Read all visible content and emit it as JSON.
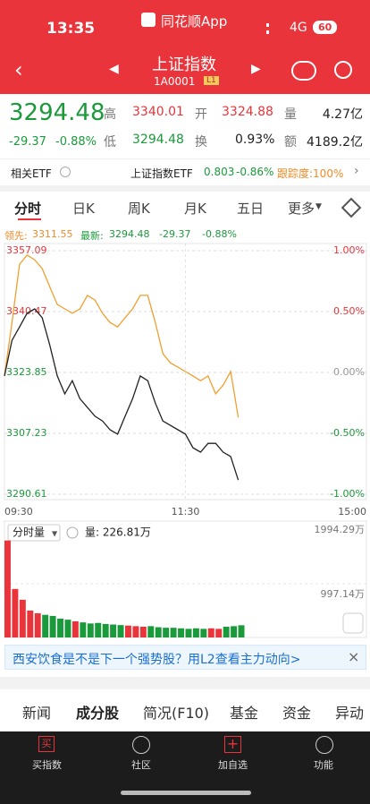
{
  "status_bar": {
    "time": "13:35",
    "app": "同花顺App",
    "network": "4G",
    "battery": "60"
  },
  "nav": {
    "title": "上证指数",
    "code": "1A0001",
    "level": "L1"
  },
  "quote": {
    "price": "3294.48",
    "change": "-29.37",
    "change_pct": "-0.88%",
    "stats": [
      {
        "label": "高",
        "value": "3340.01"
      },
      {
        "label": "开",
        "value": "3324.88"
      },
      {
        "label": "量",
        "value": "4.27亿"
      },
      {
        "label": "低",
        "value": "3294.48"
      },
      {
        "label": "换",
        "value": "0.93%"
      },
      {
        "label": "额",
        "value": "4189.2亿"
      }
    ]
  },
  "etf": {
    "label": "相关ETF",
    "name": "上证指数ETF",
    "price": "0.803",
    "change": "-0.86%",
    "tracking": "跟踪度:100%"
  },
  "period_tabs": [
    "分时",
    "日K",
    "周K",
    "月K",
    "五日",
    "更多"
  ],
  "chart_legend": {
    "lead_label": "领先:",
    "lead": "3311.55",
    "latest_label": "最新:",
    "latest": "3294.48",
    "change": "-29.37",
    "change_pct": "-0.88%"
  },
  "chart_data": [
    {
      "type": "line",
      "x": [
        0,
        5,
        10,
        15,
        20,
        25,
        30,
        35,
        40,
        45,
        50,
        55,
        60,
        65,
        70,
        75,
        80,
        85,
        90,
        95,
        100,
        105,
        110,
        115,
        120,
        125,
        130,
        135,
        140,
        145,
        150,
        155
      ],
      "xlim": [
        0,
        240
      ],
      "xticks": [
        {
          "value": 0,
          "label": "09:30"
        },
        {
          "value": 120,
          "label": "11:30"
        },
        {
          "value": 240,
          "label": "15:00"
        }
      ],
      "ylim": [
        3290.61,
        3357.09
      ],
      "yticks": [
        3357.09,
        3340.47,
        3323.85,
        3307.23,
        3290.61
      ],
      "y2lim": [
        -1.0,
        1.0
      ],
      "y2ticks": [
        {
          "value": 1.0,
          "label": "1.00%"
        },
        {
          "value": 0.5,
          "label": "0.50%"
        },
        {
          "value": 0,
          "label": "0.00%"
        },
        {
          "value": -0.5,
          "label": "-0.50%"
        },
        {
          "value": -1.0,
          "label": "-1.00%"
        }
      ],
      "series": [
        {
          "name": "最新",
          "color": "#222222",
          "values": [
            3322.9,
            3332.6,
            3336.3,
            3340.0,
            3341.2,
            3338.8,
            3331.4,
            3322.9,
            3318.0,
            3321.6,
            3316.7,
            3314.3,
            3311.9,
            3310.6,
            3308.2,
            3307.0,
            3311.9,
            3316.7,
            3322.9,
            3321.6,
            3315.5,
            3310.6,
            3309.4,
            3308.2,
            3307.0,
            3303.3,
            3302.1,
            3304.5,
            3304.5,
            3302.1,
            3300.9,
            3294.48
          ]
        },
        {
          "name": "领先",
          "color": "#f0a030",
          "values": [
            3322.9,
            3337.5,
            3353.4,
            3355.9,
            3354.6,
            3352.2,
            3347.3,
            3342.4,
            3341.2,
            3340.0,
            3341.2,
            3344.9,
            3343.6,
            3340.0,
            3337.5,
            3336.3,
            3338.8,
            3341.2,
            3344.9,
            3344.9,
            3337.5,
            3329.0,
            3326.5,
            3325.3,
            3324.1,
            3322.9,
            3321.6,
            3322.9,
            3318.0,
            3320.4,
            3324.1,
            3311.55
          ]
        }
      ]
    },
    {
      "type": "bar",
      "title": "分时量",
      "annotation": "量: 226.81万",
      "x": [
        0,
        5,
        10,
        15,
        20,
        25,
        30,
        35,
        40,
        45,
        50,
        55,
        60,
        65,
        70,
        75,
        80,
        85,
        90,
        95,
        100,
        105,
        110,
        115,
        120,
        125,
        130,
        135,
        140,
        145,
        150,
        155
      ],
      "values": [
        1800,
        900,
        700,
        500,
        450,
        420,
        400,
        350,
        330,
        300,
        280,
        260,
        270,
        250,
        240,
        230,
        220,
        210,
        200,
        210,
        190,
        180,
        180,
        170,
        160,
        170,
        160,
        170,
        160,
        200,
        210,
        226.81
      ],
      "ylim": [
        0,
        1994.29
      ],
      "yticks": [
        {
          "value": 1994.29,
          "label": "1994.29万"
        },
        {
          "value": 997.14,
          "label": "997.14万"
        }
      ],
      "colors": {
        "up": "#e8343a",
        "down": "#1a9a3a"
      }
    }
  ],
  "banner": "西安饮食是不是下一个强势股？用L2查看主力动向>",
  "section_tabs": [
    "新闻",
    "成分股",
    "简况(F10)",
    "基金",
    "资金",
    "异动"
  ],
  "bottom_bar": {
    "buy_icon": "买",
    "items": [
      "买指数",
      "社区",
      "加自选",
      "功能"
    ]
  }
}
